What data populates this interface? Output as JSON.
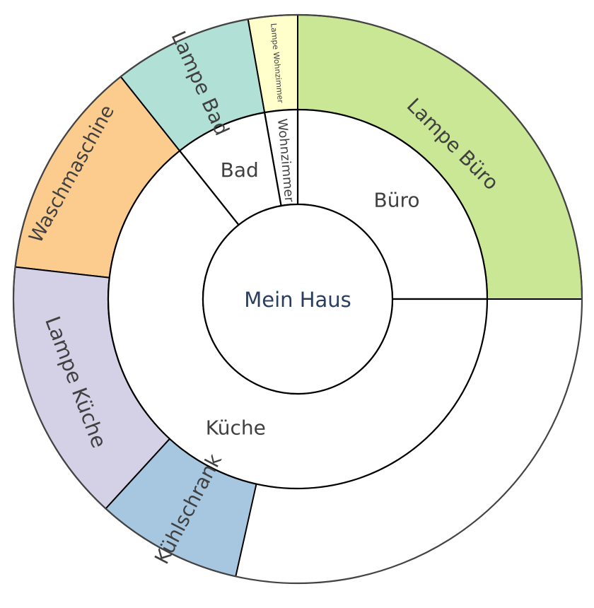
{
  "chart_data": {
    "type": "sunburst",
    "title": "",
    "root": {
      "name": "Mein Haus",
      "value": 100
    },
    "rooms": [
      {
        "name": "Büro",
        "value": 25.0
      },
      {
        "name": "Wohnzimmer",
        "value": 2.8
      },
      {
        "name": "Bad",
        "value": 7.9
      },
      {
        "name": "Küche",
        "value": 64.3
      }
    ],
    "devices": [
      {
        "name": "Lampe Büro",
        "parent": "Büro",
        "value": 25.0,
        "color": "#c9e795"
      },
      {
        "name": "Lampe Wohnzimmer",
        "parent": "Wohnzimmer",
        "value": 2.8,
        "color": "#ffffcc"
      },
      {
        "name": "Lampe Bad",
        "parent": "Bad",
        "value": 7.9,
        "color": "#b0e0d6"
      },
      {
        "name": "Waschmaschine",
        "parent": "Küche",
        "value": 12.5,
        "color": "#fccc8f"
      },
      {
        "name": "Lampe Küche",
        "parent": "Küche",
        "value": 15.0,
        "color": "#d4d0e6"
      },
      {
        "name": "Kühlschrank",
        "parent": "Küche",
        "value": 8.3,
        "color": "#a7c7e1"
      }
    ]
  }
}
